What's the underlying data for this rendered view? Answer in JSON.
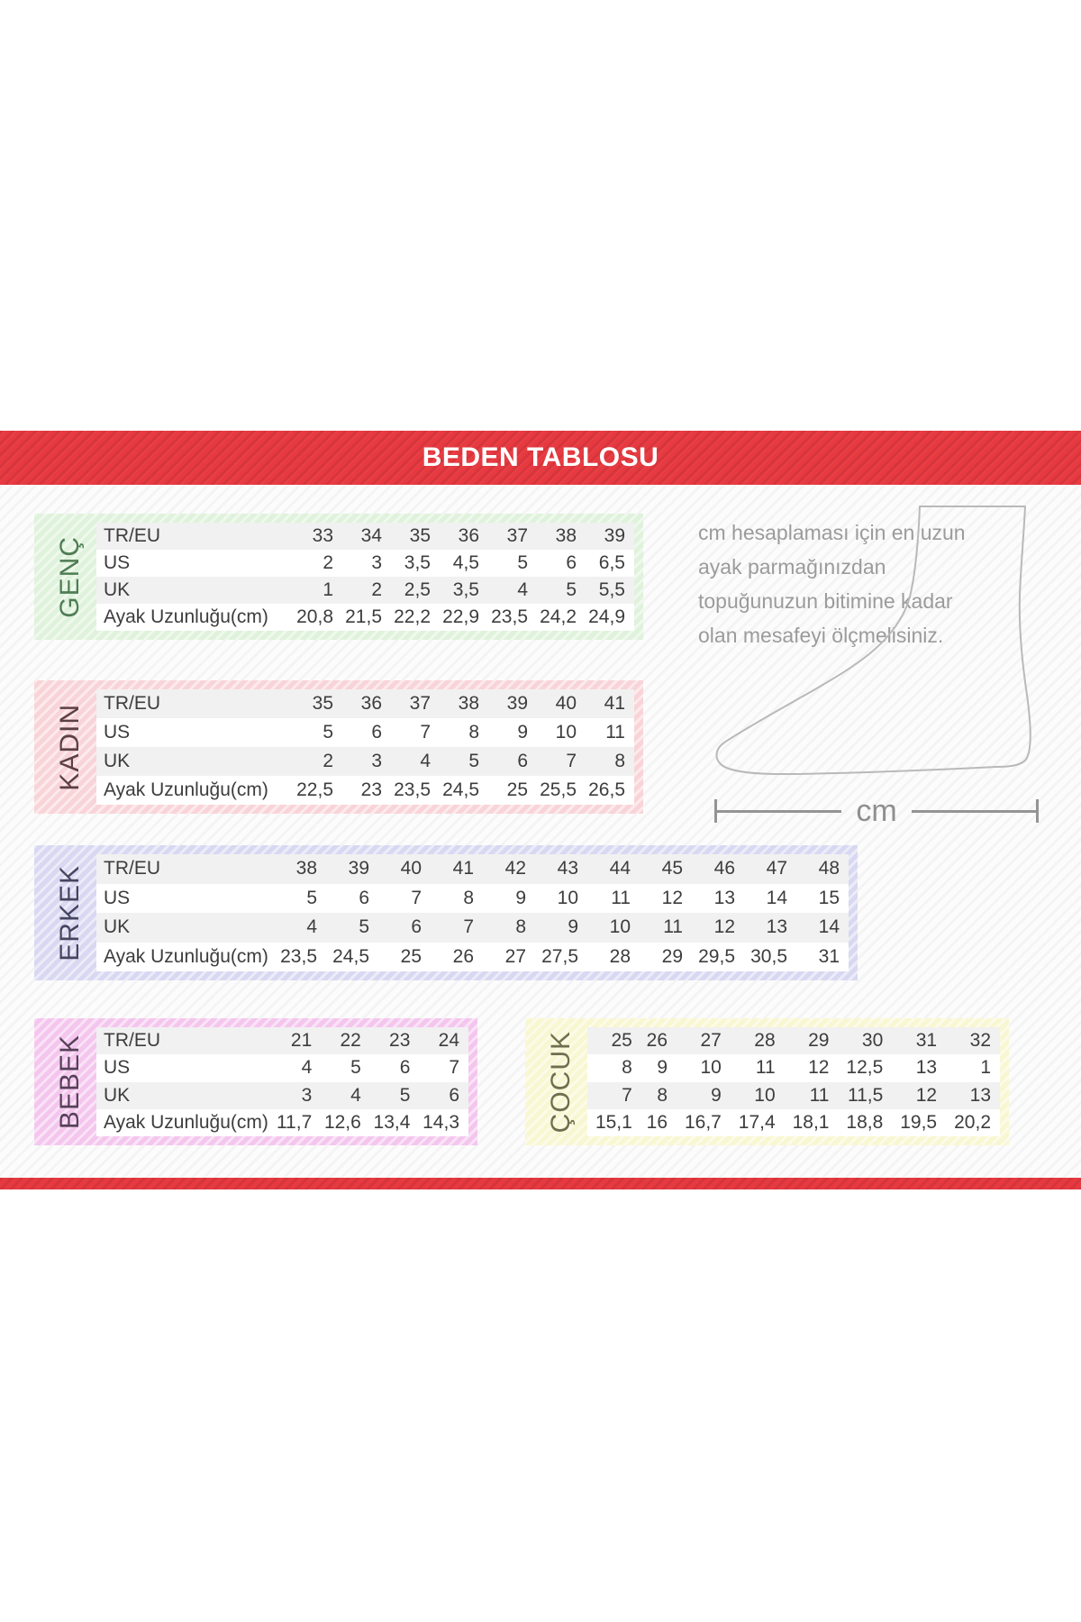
{
  "banner": {
    "title": "BEDEN TABLOSU"
  },
  "note": {
    "text": "cm hesaplaması için en uzun ayak parmağınızdan topuğunuzun bitimine kadar olan mesafeyi ölçmelisiniz."
  },
  "measure": {
    "label": "cm"
  },
  "row_labels": [
    "TR/EU",
    "US",
    "UK",
    "Ayak Uzunluğu(cm)"
  ],
  "tables": {
    "genc": {
      "label": "GENÇ",
      "accent": "#4f7d55",
      "border": "#dff2db",
      "has_row_labels": true,
      "rows": [
        [
          "33",
          "34",
          "35",
          "36",
          "37",
          "38",
          "39"
        ],
        [
          "2",
          "3",
          "3,5",
          "4,5",
          "5",
          "6",
          "6,5"
        ],
        [
          "1",
          "2",
          "2,5",
          "3,5",
          "4",
          "5",
          "5,5"
        ],
        [
          "20,8",
          "21,5",
          "22,2",
          "22,9",
          "23,5",
          "24,2",
          "24,9"
        ]
      ]
    },
    "kadin": {
      "label": "KADIN",
      "accent": "#5c4043",
      "border": "#f8d4d8",
      "has_row_labels": true,
      "rows": [
        [
          "35",
          "36",
          "37",
          "38",
          "39",
          "40",
          "41"
        ],
        [
          "5",
          "6",
          "7",
          "8",
          "9",
          "10",
          "11"
        ],
        [
          "2",
          "3",
          "4",
          "5",
          "6",
          "7",
          "8"
        ],
        [
          "22,5",
          "23",
          "23,5",
          "24,5",
          "25",
          "25,5",
          "26,5"
        ]
      ]
    },
    "erkek": {
      "label": "ERKEK",
      "accent": "#45455f",
      "border": "#d8d8f2",
      "has_row_labels": true,
      "rows": [
        [
          "38",
          "39",
          "40",
          "41",
          "42",
          "43",
          "44",
          "45",
          "46",
          "47",
          "48"
        ],
        [
          "5",
          "6",
          "7",
          "8",
          "9",
          "10",
          "11",
          "12",
          "13",
          "14",
          "15"
        ],
        [
          "4",
          "5",
          "6",
          "7",
          "8",
          "9",
          "10",
          "11",
          "12",
          "13",
          "14"
        ],
        [
          "23,5",
          "24,5",
          "25",
          "26",
          "27",
          "27,5",
          "28",
          "29",
          "29,5",
          "30,5",
          "31"
        ]
      ]
    },
    "bebek": {
      "label": "BEBEK",
      "accent": "#57405a",
      "border": "#f4c6ee",
      "has_row_labels": true,
      "rows": [
        [
          "21",
          "22",
          "23",
          "24"
        ],
        [
          "4",
          "5",
          "6",
          "7"
        ],
        [
          "3",
          "4",
          "5",
          "6"
        ],
        [
          "11,7",
          "12,6",
          "13,4",
          "14,3"
        ]
      ]
    },
    "cocuk": {
      "label": "ÇOCUK",
      "accent": "#6f6e4e",
      "border": "#f8f7d2",
      "has_row_labels": false,
      "rows": [
        [
          "25",
          "26",
          "27",
          "28",
          "29",
          "30",
          "31",
          "32"
        ],
        [
          "8",
          "9",
          "10",
          "11",
          "12",
          "12,5",
          "13",
          "1"
        ],
        [
          "7",
          "8",
          "9",
          "10",
          "11",
          "11,5",
          "12",
          "13"
        ],
        [
          "15,1",
          "16",
          "16,7",
          "17,4",
          "18,1",
          "18,8",
          "19,5",
          "20,2"
        ]
      ]
    }
  },
  "colors": {
    "banner_red": "#e73940",
    "row_alt": "#f1f1f1",
    "table_text": "#3d3d3d",
    "note_gray": "#9b9b9b",
    "foot_stroke": "#b9b9b9"
  }
}
